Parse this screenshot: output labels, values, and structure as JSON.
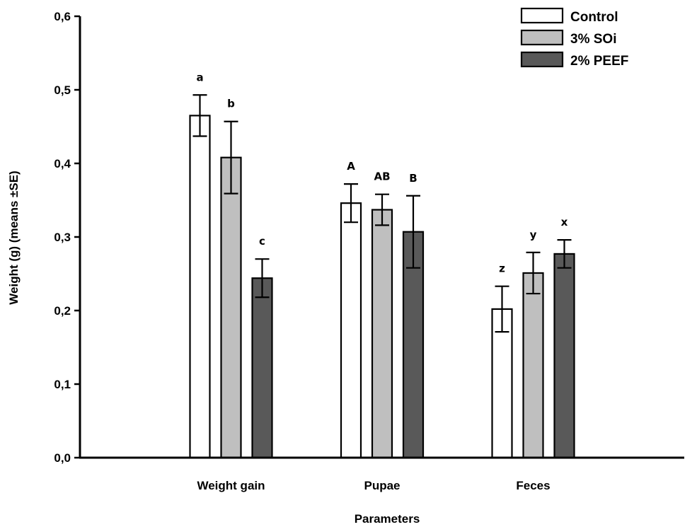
{
  "chart_data": {
    "type": "bar",
    "title": "",
    "xlabel": "Parameters",
    "ylabel": "Weight (g) (means ±SE)",
    "ylim": [
      0,
      0.6
    ],
    "yticks": [
      "0,0",
      "0,1",
      "0,2",
      "0,3",
      "0,4",
      "0,5",
      "0,6"
    ],
    "categories": [
      "Weight gain",
      "Pupae",
      "Feces"
    ],
    "legend_position": "top-right",
    "grid": false,
    "series": [
      {
        "name": "Control",
        "color": "#ffffff",
        "values": [
          0.465,
          0.346,
          0.202
        ],
        "errors": [
          0.028,
          0.026,
          0.031
        ],
        "letters": [
          "a",
          "A",
          "z"
        ]
      },
      {
        "name": "3% SOi",
        "color": "#bfbfbf",
        "values": [
          0.408,
          0.337,
          0.251
        ],
        "errors": [
          0.049,
          0.021,
          0.028
        ],
        "letters": [
          "b",
          "AB",
          "y"
        ]
      },
      {
        "name": "2% PEEF",
        "color": "#595959",
        "values": [
          0.244,
          0.307,
          0.277
        ],
        "errors": [
          0.026,
          0.049,
          0.019
        ],
        "letters": [
          "c",
          "B",
          "x"
        ]
      }
    ]
  }
}
